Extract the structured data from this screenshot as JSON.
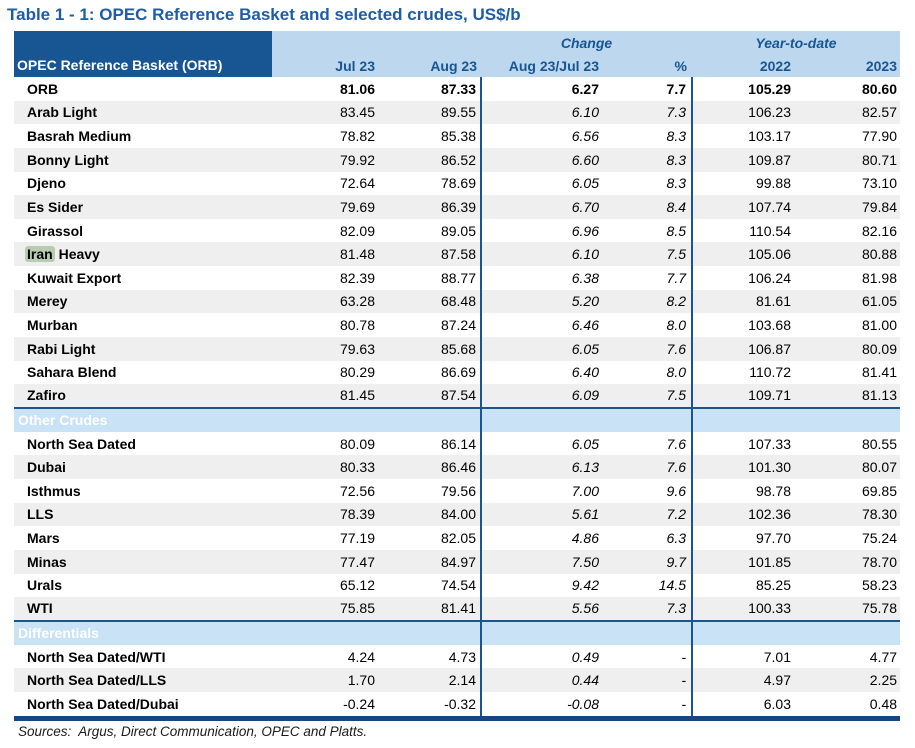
{
  "title": "Table 1 - 1: OPEC Reference Basket and selected crudes, US$/b",
  "footer": "Sources:  Argus, Direct Communication, OPEC and Platts.",
  "colors": {
    "dark_blue": "#175693",
    "header_light_blue": "#BDD7EE",
    "section_light_blue": "#C9E2F6",
    "stripe_gray": "#EFEFEF",
    "title_blue": "#1E5DA6",
    "double_line_navy": "#17477E",
    "iran_highlight_green": "#B8CCB0"
  },
  "header": {
    "group_label": "OPEC Reference Basket (ORB)",
    "change_label": "Change",
    "ytd_label": "Year-to-date",
    "columns": [
      "Jul 23",
      "Aug 23",
      "Aug 23/Jul 23",
      "%",
      "2022",
      "2023"
    ]
  },
  "chart_data": {
    "type": "table",
    "title": "Table 1 - 1: OPEC Reference Basket and selected crudes, US$/b",
    "columns": [
      "Jul 23",
      "Aug 23",
      "Aug 23/Jul 23",
      "%",
      "2022",
      "2023"
    ],
    "sections": [
      {
        "name": null,
        "rows": [
          {
            "label": "ORB",
            "bold": true,
            "values": [
              "81.06",
              "87.33",
              "6.27",
              "7.7",
              "105.29",
              "80.60"
            ]
          },
          {
            "label": "Arab Light",
            "values": [
              "83.45",
              "89.55",
              "6.10",
              "7.3",
              "106.23",
              "82.57"
            ]
          },
          {
            "label": "Basrah Medium",
            "values": [
              "78.82",
              "85.38",
              "6.56",
              "8.3",
              "103.17",
              "77.90"
            ]
          },
          {
            "label": "Bonny Light",
            "values": [
              "79.92",
              "86.52",
              "6.60",
              "8.3",
              "109.87",
              "80.71"
            ]
          },
          {
            "label": "Djeno",
            "values": [
              "72.64",
              "78.69",
              "6.05",
              "8.3",
              "99.88",
              "73.10"
            ]
          },
          {
            "label": "Es Sider",
            "values": [
              "79.69",
              "86.39",
              "6.70",
              "8.4",
              "107.74",
              "79.84"
            ]
          },
          {
            "label": "Girassol",
            "values": [
              "82.09",
              "89.05",
              "6.96",
              "8.5",
              "110.54",
              "82.16"
            ]
          },
          {
            "label": "Iran Heavy",
            "highlight_word": "Iran",
            "label_rest": " Heavy",
            "values": [
              "81.48",
              "87.58",
              "6.10",
              "7.5",
              "105.06",
              "80.88"
            ]
          },
          {
            "label": "Kuwait Export",
            "values": [
              "82.39",
              "88.77",
              "6.38",
              "7.7",
              "106.24",
              "81.98"
            ]
          },
          {
            "label": "Merey",
            "values": [
              "63.28",
              "68.48",
              "5.20",
              "8.2",
              "81.61",
              "61.05"
            ]
          },
          {
            "label": "Murban",
            "values": [
              "80.78",
              "87.24",
              "6.46",
              "8.0",
              "103.68",
              "81.00"
            ]
          },
          {
            "label": "Rabi Light",
            "values": [
              "79.63",
              "85.68",
              "6.05",
              "7.6",
              "106.87",
              "80.09"
            ]
          },
          {
            "label": "Sahara Blend",
            "values": [
              "80.29",
              "86.69",
              "6.40",
              "8.0",
              "110.72",
              "81.41"
            ]
          },
          {
            "label": "Zafiro",
            "values": [
              "81.45",
              "87.54",
              "6.09",
              "7.5",
              "109.71",
              "81.13"
            ]
          }
        ]
      },
      {
        "name": "Other Crudes",
        "rows": [
          {
            "label": "North Sea Dated",
            "values": [
              "80.09",
              "86.14",
              "6.05",
              "7.6",
              "107.33",
              "80.55"
            ]
          },
          {
            "label": "Dubai",
            "values": [
              "80.33",
              "86.46",
              "6.13",
              "7.6",
              "101.30",
              "80.07"
            ]
          },
          {
            "label": "Isthmus",
            "values": [
              "72.56",
              "79.56",
              "7.00",
              "9.6",
              "98.78",
              "69.85"
            ]
          },
          {
            "label": "LLS",
            "values": [
              "78.39",
              "84.00",
              "5.61",
              "7.2",
              "102.36",
              "78.30"
            ]
          },
          {
            "label": "Mars",
            "values": [
              "77.19",
              "82.05",
              "4.86",
              "6.3",
              "97.70",
              "75.24"
            ]
          },
          {
            "label": "Minas",
            "values": [
              "77.47",
              "84.97",
              "7.50",
              "9.7",
              "101.85",
              "78.70"
            ]
          },
          {
            "label": "Urals",
            "values": [
              "65.12",
              "74.54",
              "9.42",
              "14.5",
              "85.25",
              "58.23"
            ]
          },
          {
            "label": "WTI",
            "values": [
              "75.85",
              "81.41",
              "5.56",
              "7.3",
              "100.33",
              "75.78"
            ]
          }
        ]
      },
      {
        "name": "Differentials",
        "rows": [
          {
            "label": "North Sea Dated/WTI",
            "values": [
              "4.24",
              "4.73",
              "0.49",
              "-",
              "7.01",
              "4.77"
            ]
          },
          {
            "label": "North Sea Dated/LLS",
            "values": [
              "1.70",
              "2.14",
              "0.44",
              "-",
              "4.97",
              "2.25"
            ]
          },
          {
            "label": "North Sea Dated/Dubai",
            "values": [
              "-0.24",
              "-0.32",
              "-0.08",
              "-",
              "6.03",
              "0.48"
            ]
          }
        ]
      }
    ]
  }
}
